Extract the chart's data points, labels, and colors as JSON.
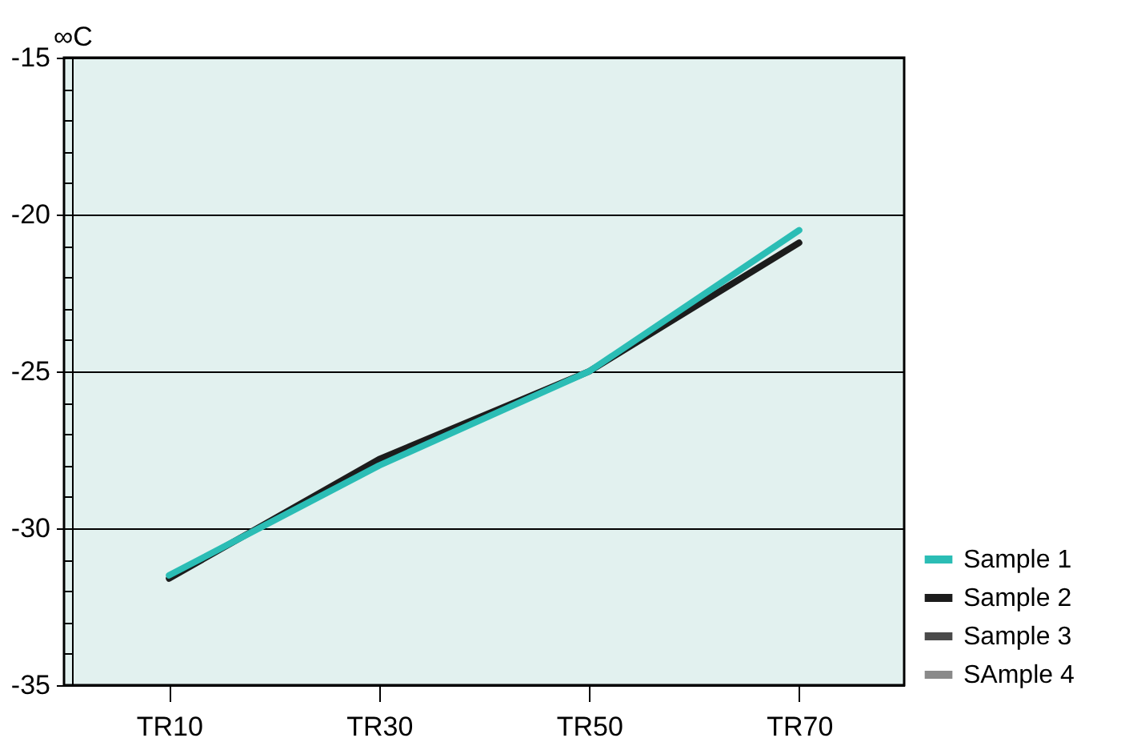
{
  "chart_data": {
    "type": "line",
    "ylabel": "∞C",
    "categories": [
      "TR10",
      "TR30",
      "TR50",
      "TR70"
    ],
    "series": [
      {
        "name": "Sample 1",
        "color": "#2bbdb5",
        "values": [
          -31.5,
          -28.0,
          -25.0,
          -20.5
        ]
      },
      {
        "name": "Sample 2",
        "color": "#1c1c1c",
        "values": [
          -31.6,
          -27.8,
          -25.0,
          -20.9
        ]
      },
      {
        "name": "Sample 3",
        "color": "#4a4a4a",
        "values": [
          null,
          null,
          null,
          null
        ]
      },
      {
        "name": "SAmple 4",
        "color": "#8a8a8a",
        "values": [
          null,
          null,
          null,
          null
        ]
      }
    ],
    "ylim": [
      -35,
      -15
    ],
    "yticks": [
      -35,
      {
        "value": -34,
        "label": null
      },
      {
        "value": -33,
        "label": null
      },
      {
        "value": -32,
        "label": null
      },
      {
        "value": -31,
        "label": null
      },
      -30,
      {
        "value": -29,
        "label": null
      },
      {
        "value": -28,
        "label": null
      },
      {
        "value": -27,
        "label": null
      },
      {
        "value": -26,
        "label": null
      },
      -25,
      {
        "value": -24,
        "label": null
      },
      {
        "value": -23,
        "label": null
      },
      {
        "value": -22,
        "label": null
      },
      {
        "value": -21,
        "label": null
      },
      -20,
      {
        "value": -19,
        "label": null
      },
      {
        "value": -18,
        "label": null
      },
      {
        "value": -17,
        "label": null
      },
      {
        "value": -16,
        "label": null
      },
      -15
    ],
    "grid": "y",
    "legend": "bottom right",
    "line_style": "solid",
    "marker": "none"
  }
}
